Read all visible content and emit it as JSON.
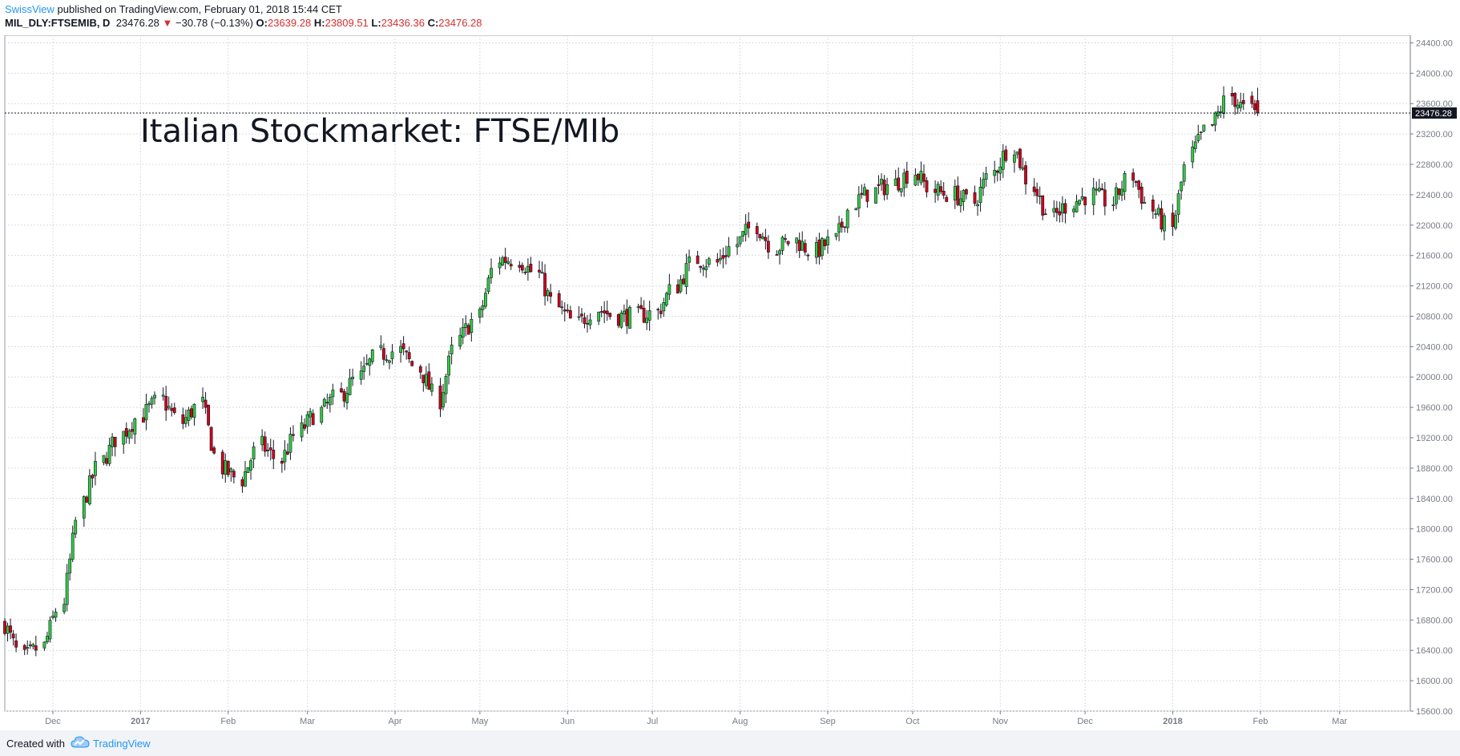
{
  "header": {
    "author": "SwissView",
    "published_text": " published on TradingView.com, February 01, 2018 15:44 CET",
    "symbol": "MIL_DLY:FTSEMIB, D",
    "last": "23476.28",
    "change_arrow": "▼",
    "change": "−30.78 (−0.13%)",
    "open_label": "O:",
    "open": "23639.28",
    "high_label": "H:",
    "high": "23809.51",
    "low_label": "L:",
    "low": "23436.36",
    "close_label": "C:",
    "close": "23476.28"
  },
  "footer": {
    "created_with": "Created with",
    "brand": "TradingView",
    "brand_icon": "tradingview-cloud-icon"
  },
  "colors": {
    "up": "#2ecc40",
    "down": "#d0021b",
    "wick": "#131722",
    "grid": "#d9dce1",
    "axis": "#787b86",
    "brand": "#2196f3"
  },
  "chart_data": {
    "type": "candlestick",
    "title": "Italian Stockmarket: FTSE/MIb",
    "y_range": [
      15600,
      24500
    ],
    "y_ticks": [
      "15600.00",
      "16000.00",
      "16400.00",
      "16800.00",
      "17200.00",
      "17600.00",
      "18000.00",
      "18400.00",
      "18800.00",
      "19200.00",
      "19600.00",
      "20000.00",
      "20400.00",
      "20800.00",
      "21200.00",
      "21600.00",
      "22000.00",
      "22400.00",
      "22800.00",
      "23200.00",
      "23600.00",
      "24000.00",
      "24400.00"
    ],
    "x_labels": [
      "Dec",
      "2017",
      "Feb",
      "Mar",
      "Apr",
      "May",
      "Jun",
      "Jul",
      "Aug",
      "Sep",
      "Oct",
      "Nov",
      "Dec",
      "2018",
      "Feb",
      "Mar"
    ],
    "x_label_dates": [
      "2016-12-01",
      "2017-01-01",
      "2017-02-01",
      "2017-03-01",
      "2017-04-01",
      "2017-05-01",
      "2017-06-01",
      "2017-07-01",
      "2017-08-01",
      "2017-09-01",
      "2017-10-01",
      "2017-11-01",
      "2017-12-01",
      "2018-01-01",
      "2018-02-01",
      "2018-03-01"
    ],
    "x_range": [
      "2016-11-14",
      "2018-03-26"
    ],
    "last_price": 23476.28,
    "last_price_label": "23476.28",
    "grid": true,
    "closes": [
      [
        "2016-11-14",
        16750
      ],
      [
        "2016-11-21",
        16300
      ],
      [
        "2016-11-28",
        16450
      ],
      [
        "2016-12-05",
        17050
      ],
      [
        "2016-12-12",
        18350
      ],
      [
        "2016-12-19",
        18900
      ],
      [
        "2016-12-26",
        19250
      ],
      [
        "2017-01-02",
        19500
      ],
      [
        "2017-01-09",
        19700
      ],
      [
        "2017-01-16",
        19400
      ],
      [
        "2017-01-23",
        19650
      ],
      [
        "2017-01-30",
        18800
      ],
      [
        "2017-02-06",
        18650
      ],
      [
        "2017-02-13",
        19100
      ],
      [
        "2017-02-20",
        18900
      ],
      [
        "2017-02-27",
        19300
      ],
      [
        "2017-03-06",
        19550
      ],
      [
        "2017-03-13",
        19750
      ],
      [
        "2017-03-20",
        20000
      ],
      [
        "2017-03-27",
        20300
      ],
      [
        "2017-04-03",
        20350
      ],
      [
        "2017-04-10",
        20100
      ],
      [
        "2017-04-17",
        19700
      ],
      [
        "2017-04-24",
        20500
      ],
      [
        "2017-05-01",
        20800
      ],
      [
        "2017-05-08",
        21550
      ],
      [
        "2017-05-15",
        21550
      ],
      [
        "2017-05-22",
        21350
      ],
      [
        "2017-05-29",
        20900
      ],
      [
        "2017-06-05",
        20700
      ],
      [
        "2017-06-12",
        20900
      ],
      [
        "2017-06-19",
        20800
      ],
      [
        "2017-06-26",
        20800
      ],
      [
        "2017-07-03",
        20850
      ],
      [
        "2017-07-10",
        21200
      ],
      [
        "2017-07-17",
        21550
      ],
      [
        "2017-07-24",
        21500
      ],
      [
        "2017-07-31",
        21750
      ],
      [
        "2017-08-07",
        22000
      ],
      [
        "2017-08-14",
        21700
      ],
      [
        "2017-08-21",
        21800
      ],
      [
        "2017-08-28",
        21650
      ],
      [
        "2017-09-04",
        21800
      ],
      [
        "2017-09-11",
        22300
      ],
      [
        "2017-09-18",
        22450
      ],
      [
        "2017-09-25",
        22550
      ],
      [
        "2017-10-02",
        22700
      ],
      [
        "2017-10-09",
        22450
      ],
      [
        "2017-10-16",
        22400
      ],
      [
        "2017-10-23",
        22300
      ],
      [
        "2017-10-30",
        22700
      ],
      [
        "2017-11-06",
        23050
      ],
      [
        "2017-11-13",
        22500
      ],
      [
        "2017-11-20",
        22100
      ],
      [
        "2017-11-27",
        22300
      ],
      [
        "2017-12-04",
        22400
      ],
      [
        "2017-12-11",
        22300
      ],
      [
        "2017-12-18",
        22650
      ],
      [
        "2017-12-25",
        22200
      ],
      [
        "2018-01-01",
        21950
      ],
      [
        "2018-01-08",
        22950
      ],
      [
        "2018-01-15",
        23300
      ],
      [
        "2018-01-22",
        23700
      ],
      [
        "2018-01-29",
        23476
      ]
    ]
  }
}
